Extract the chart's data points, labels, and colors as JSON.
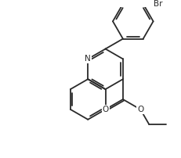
{
  "bg_color": "#ffffff",
  "line_color": "#2a2a2a",
  "line_width": 1.3,
  "label_Br": "Br",
  "label_N": "N",
  "label_O1": "O",
  "label_O2": "O",
  "font_size_atoms": 7.5,
  "xlim": [
    0,
    10
  ],
  "ylim": [
    0,
    8.8
  ]
}
